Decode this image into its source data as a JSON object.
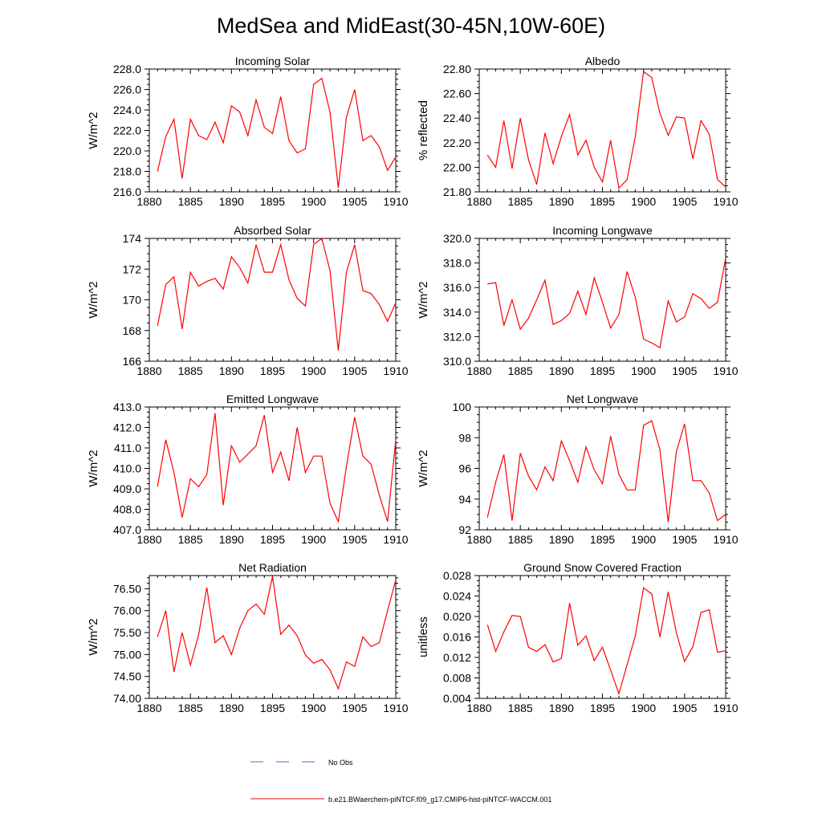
{
  "figure": {
    "title": "MedSea and MidEast(30-45N,10W-60E)",
    "legend": {
      "no_obs_label": "No Obs",
      "model_label": "b.e21.BWaerchem-piNTCF.f09_g17.CMIP6-hist-piNTCF-WACCM.001"
    },
    "colors": {
      "model": "#ff0000",
      "obs": "#5566cc",
      "axis": "#000000",
      "background": "#ffffff"
    }
  },
  "chart_data": [
    {
      "type": "line",
      "title": "Incoming Solar",
      "ylabel": "W/m^2",
      "xlabel": "",
      "xlim": [
        1880,
        1910
      ],
      "xticks": [
        "1880",
        "1885",
        "1890",
        "1895",
        "1900",
        "1905",
        "1910"
      ],
      "ylim": [
        216.0,
        228.0
      ],
      "yticks": [
        "216.0",
        "218.0",
        "220.0",
        "222.0",
        "224.0",
        "226.0",
        "228.0"
      ],
      "x": [
        1881,
        1882,
        1883,
        1884,
        1885,
        1886,
        1887,
        1888,
        1889,
        1890,
        1891,
        1892,
        1893,
        1894,
        1895,
        1896,
        1897,
        1898,
        1899,
        1900,
        1901,
        1902,
        1903,
        1904,
        1905,
        1906,
        1907,
        1908,
        1909,
        1910
      ],
      "series": [
        {
          "values": [
            218.0,
            221.4,
            223.1,
            217.3,
            223.1,
            221.5,
            221.1,
            222.8,
            220.8,
            224.4,
            223.8,
            221.5,
            225.0,
            222.3,
            221.7,
            225.3,
            221.0,
            219.8,
            220.2,
            226.5,
            227.1,
            223.8,
            216.4,
            223.3,
            226.0,
            221.0,
            221.5,
            220.4,
            218.1,
            219.4
          ]
        }
      ]
    },
    {
      "type": "line",
      "title": "Albedo",
      "ylabel": "% reflected",
      "xlabel": "",
      "xlim": [
        1880,
        1910
      ],
      "xticks": [
        "1880",
        "1885",
        "1890",
        "1895",
        "1900",
        "1905",
        "1910"
      ],
      "ylim": [
        21.8,
        22.8
      ],
      "yticks": [
        "21.80",
        "22.00",
        "22.20",
        "22.40",
        "22.60",
        "22.80"
      ],
      "x": [
        1881,
        1882,
        1883,
        1884,
        1885,
        1886,
        1887,
        1888,
        1889,
        1890,
        1891,
        1892,
        1893,
        1894,
        1895,
        1896,
        1897,
        1898,
        1899,
        1900,
        1901,
        1902,
        1903,
        1904,
        1905,
        1906,
        1907,
        1908,
        1909,
        1910
      ],
      "series": [
        {
          "values": [
            22.1,
            22.0,
            22.38,
            21.99,
            22.4,
            22.06,
            21.86,
            22.28,
            22.03,
            22.25,
            22.43,
            22.1,
            22.22,
            22.0,
            21.88,
            22.22,
            21.83,
            21.9,
            22.25,
            22.78,
            22.73,
            22.44,
            22.26,
            22.41,
            22.4,
            22.07,
            22.38,
            22.27,
            21.9,
            21.84
          ]
        }
      ]
    },
    {
      "type": "line",
      "title": "Absorbed Solar",
      "ylabel": "W/m^2",
      "xlabel": "",
      "xlim": [
        1880,
        1910
      ],
      "xticks": [
        "1880",
        "1885",
        "1890",
        "1895",
        "1900",
        "1905",
        "1910"
      ],
      "ylim": [
        166,
        174
      ],
      "yticks": [
        "166",
        "168",
        "170",
        "172",
        "174"
      ],
      "x": [
        1881,
        1882,
        1883,
        1884,
        1885,
        1886,
        1887,
        1888,
        1889,
        1890,
        1891,
        1892,
        1893,
        1894,
        1895,
        1896,
        1897,
        1898,
        1899,
        1900,
        1901,
        1902,
        1903,
        1904,
        1905,
        1906,
        1907,
        1908,
        1909,
        1910
      ],
      "series": [
        {
          "values": [
            168.3,
            171.0,
            171.5,
            168.1,
            171.8,
            170.9,
            171.2,
            171.4,
            170.7,
            172.8,
            172.1,
            171.1,
            173.6,
            171.8,
            171.8,
            173.6,
            171.3,
            170.1,
            169.6,
            173.6,
            174.0,
            171.9,
            166.7,
            171.8,
            173.6,
            170.6,
            170.4,
            169.7,
            168.6,
            169.8
          ]
        }
      ]
    },
    {
      "type": "line",
      "title": "Incoming Longwave",
      "ylabel": "W/m^2",
      "xlabel": "",
      "xlim": [
        1880,
        1910
      ],
      "xticks": [
        "1880",
        "1885",
        "1890",
        "1895",
        "1900",
        "1905",
        "1910"
      ],
      "ylim": [
        310.0,
        320.0
      ],
      "yticks": [
        "310.0",
        "312.0",
        "314.0",
        "316.0",
        "318.0",
        "320.0"
      ],
      "x": [
        1881,
        1882,
        1883,
        1884,
        1885,
        1886,
        1887,
        1888,
        1889,
        1890,
        1891,
        1892,
        1893,
        1894,
        1895,
        1896,
        1897,
        1898,
        1899,
        1900,
        1901,
        1902,
        1903,
        1904,
        1905,
        1906,
        1907,
        1908,
        1909,
        1910
      ],
      "series": [
        {
          "values": [
            316.3,
            316.4,
            312.9,
            315.0,
            312.6,
            313.5,
            315.0,
            316.6,
            313.0,
            313.3,
            313.9,
            315.7,
            313.8,
            316.8,
            314.8,
            312.7,
            313.8,
            317.3,
            315.2,
            311.8,
            311.5,
            311.1,
            314.9,
            313.2,
            313.6,
            315.5,
            315.1,
            314.3,
            314.8,
            318.4
          ]
        }
      ]
    },
    {
      "type": "line",
      "title": "Emitted Longwave",
      "ylabel": "W/m^2",
      "xlabel": "",
      "xlim": [
        1880,
        1910
      ],
      "xticks": [
        "1880",
        "1885",
        "1890",
        "1895",
        "1900",
        "1905",
        "1910"
      ],
      "ylim": [
        407.0,
        413.0
      ],
      "yticks": [
        "407.0",
        "408.0",
        "409.0",
        "410.0",
        "411.0",
        "412.0",
        "413.0"
      ],
      "x": [
        1881,
        1882,
        1883,
        1884,
        1885,
        1886,
        1887,
        1888,
        1889,
        1890,
        1891,
        1892,
        1893,
        1894,
        1895,
        1896,
        1897,
        1898,
        1899,
        1900,
        1901,
        1902,
        1903,
        1904,
        1905,
        1906,
        1907,
        1908,
        1909,
        1910
      ],
      "series": [
        {
          "values": [
            409.1,
            411.4,
            409.8,
            407.6,
            409.5,
            409.1,
            409.7,
            412.7,
            408.2,
            411.1,
            410.3,
            410.7,
            411.1,
            412.6,
            409.8,
            410.8,
            409.4,
            412.0,
            409.8,
            410.6,
            410.6,
            408.3,
            407.4,
            410.1,
            412.5,
            410.6,
            410.2,
            408.7,
            407.4,
            411.4
          ]
        }
      ]
    },
    {
      "type": "line",
      "title": "Net Longwave",
      "ylabel": "W/m^2",
      "xlabel": "",
      "xlim": [
        1880,
        1910
      ],
      "xticks": [
        "1880",
        "1885",
        "1890",
        "1895",
        "1900",
        "1905",
        "1910"
      ],
      "ylim": [
        92,
        100
      ],
      "yticks": [
        "92",
        "94",
        "96",
        "98",
        "100"
      ],
      "x": [
        1881,
        1882,
        1883,
        1884,
        1885,
        1886,
        1887,
        1888,
        1889,
        1890,
        1891,
        1892,
        1893,
        1894,
        1895,
        1896,
        1897,
        1898,
        1899,
        1900,
        1901,
        1902,
        1903,
        1904,
        1905,
        1906,
        1907,
        1908,
        1909,
        1910
      ],
      "series": [
        {
          "values": [
            92.8,
            95.1,
            96.9,
            92.6,
            97.0,
            95.5,
            94.6,
            96.1,
            95.2,
            97.8,
            96.5,
            95.1,
            97.4,
            95.9,
            95.0,
            98.1,
            95.6,
            94.6,
            94.6,
            98.8,
            99.1,
            97.2,
            92.5,
            97.1,
            98.9,
            95.2,
            95.2,
            94.4,
            92.6,
            93.0
          ]
        }
      ]
    },
    {
      "type": "line",
      "title": "Net Radiation",
      "ylabel": "W/m^2",
      "xlabel": "",
      "xlim": [
        1880,
        1910
      ],
      "xticks": [
        "1880",
        "1885",
        "1890",
        "1895",
        "1900",
        "1905",
        "1910"
      ],
      "ylim": [
        74.0,
        76.8
      ],
      "yticks": [
        "74.00",
        "74.50",
        "75.00",
        "75.50",
        "76.00",
        "76.50"
      ],
      "x": [
        1881,
        1882,
        1883,
        1884,
        1885,
        1886,
        1887,
        1888,
        1889,
        1890,
        1891,
        1892,
        1893,
        1894,
        1895,
        1896,
        1897,
        1898,
        1899,
        1900,
        1901,
        1902,
        1903,
        1904,
        1905,
        1906,
        1907,
        1908,
        1909,
        1910
      ],
      "series": [
        {
          "values": [
            75.4,
            76.0,
            74.6,
            75.5,
            74.76,
            75.45,
            76.53,
            75.27,
            75.43,
            75.0,
            75.6,
            76.0,
            76.15,
            75.92,
            76.78,
            75.46,
            75.67,
            75.43,
            74.99,
            74.8,
            74.89,
            74.65,
            74.22,
            74.83,
            74.73,
            75.4,
            75.18,
            75.27,
            76.0,
            76.7
          ]
        }
      ]
    },
    {
      "type": "line",
      "title": "Ground Snow Covered Fraction",
      "ylabel": "unitless",
      "xlabel": "",
      "xlim": [
        1880,
        1910
      ],
      "xticks": [
        "1880",
        "1885",
        "1890",
        "1895",
        "1900",
        "1905",
        "1910"
      ],
      "ylim": [
        0.004,
        0.028
      ],
      "yticks": [
        "0.004",
        "0.008",
        "0.012",
        "0.016",
        "0.020",
        "0.024",
        "0.028"
      ],
      "x": [
        1881,
        1882,
        1883,
        1884,
        1885,
        1886,
        1887,
        1888,
        1889,
        1890,
        1891,
        1892,
        1893,
        1894,
        1895,
        1896,
        1897,
        1898,
        1899,
        1900,
        1901,
        1902,
        1903,
        1904,
        1905,
        1906,
        1907,
        1908,
        1909,
        1910
      ],
      "series": [
        {
          "values": [
            0.0184,
            0.0132,
            0.017,
            0.0202,
            0.02,
            0.014,
            0.0132,
            0.0145,
            0.0111,
            0.0118,
            0.0226,
            0.0144,
            0.0162,
            0.0114,
            0.014,
            0.0095,
            0.0049,
            0.0106,
            0.0162,
            0.0256,
            0.0244,
            0.016,
            0.0248,
            0.0168,
            0.0112,
            0.0141,
            0.0208,
            0.0213,
            0.013,
            0.0133
          ]
        }
      ]
    }
  ]
}
